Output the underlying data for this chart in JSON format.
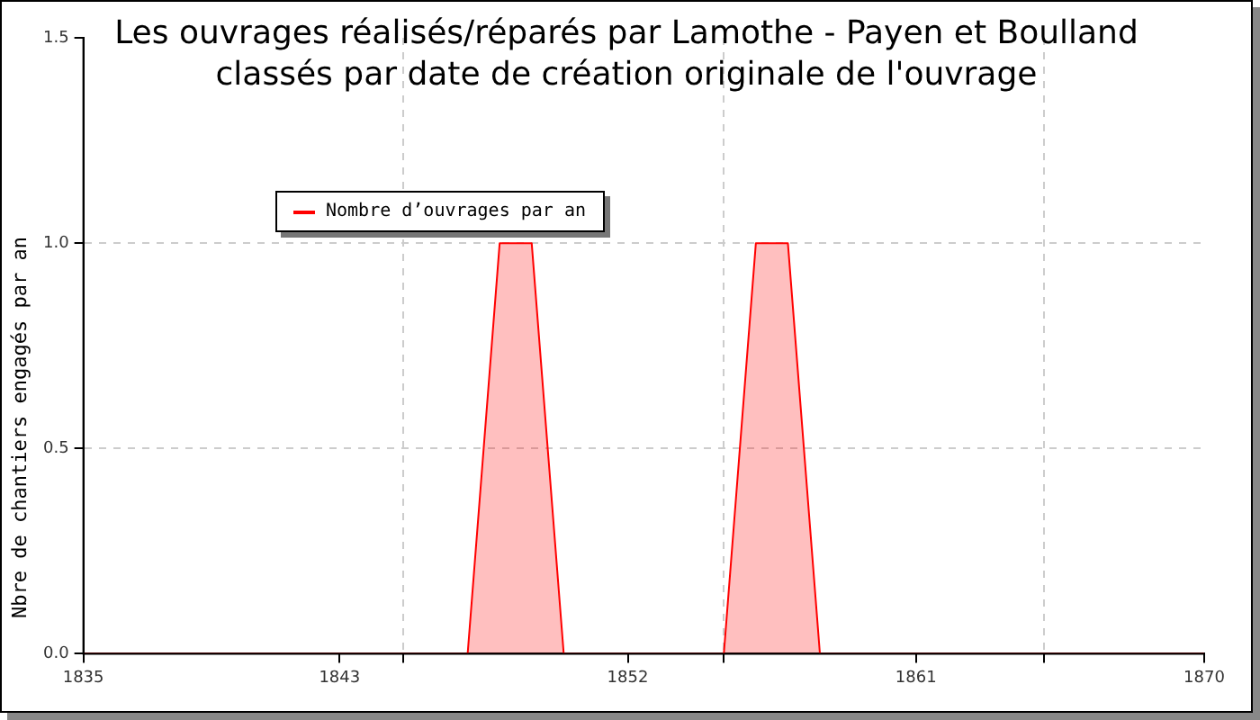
{
  "chart_data": {
    "type": "area",
    "title": "Les ouvrages réalisés/réparés par Lamothe - Payen et Boulland\nclassés par date de création originale de l'ouvrage",
    "ylabel": "Nbre de chantiers engagés par an",
    "x": [
      1835,
      1836,
      1837,
      1838,
      1839,
      1840,
      1841,
      1842,
      1843,
      1844,
      1845,
      1846,
      1847,
      1848,
      1849,
      1850,
      1851,
      1852,
      1853,
      1854,
      1855,
      1856,
      1857,
      1858,
      1859,
      1860,
      1861,
      1862,
      1863,
      1864,
      1865,
      1866,
      1867,
      1868,
      1869,
      1870
    ],
    "series": [
      {
        "name": "Nombre d’ouvrages par an",
        "color": "#ff0000",
        "values": [
          0,
          0,
          0,
          0,
          0,
          0,
          0,
          0,
          0,
          0,
          0,
          0,
          0,
          1,
          1,
          0,
          0,
          0,
          0,
          0,
          0,
          1,
          1,
          0,
          0,
          0,
          0,
          0,
          0,
          0,
          0,
          0,
          0,
          0,
          0,
          0
        ]
      }
    ],
    "xlim": [
      1835,
      1870
    ],
    "xticks": [
      1835,
      1843,
      {
        "value": 1845,
        "label": null
      },
      1852,
      {
        "value": 1855,
        "label": null
      },
      1861,
      {
        "value": 1865,
        "label": null
      },
      1870
    ],
    "ylim": [
      0,
      1.5
    ],
    "yticks": [
      {
        "value": 0,
        "label": "0.0"
      },
      {
        "value": 0.5,
        "label": "0.5"
      },
      {
        "value": 1,
        "label": "1.0"
      },
      {
        "value": 1.5,
        "label": "1.5"
      }
    ],
    "grid": true,
    "legend": "top left",
    "line_style": "solid",
    "marker": "none"
  }
}
